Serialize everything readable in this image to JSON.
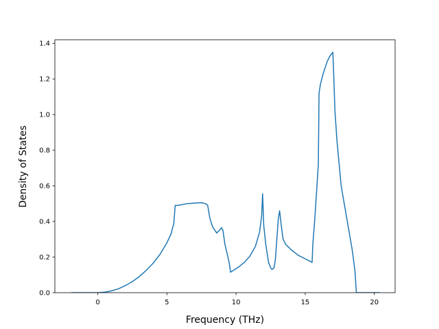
{
  "chart_data": {
    "type": "line",
    "title": "",
    "xlabel": "Frequency (THz)",
    "ylabel": "Density of States",
    "xlim": [
      -3.1,
      21.5
    ],
    "ylim": [
      0.0,
      1.42
    ],
    "grid": false,
    "xticks": [
      0,
      5,
      10,
      15,
      20
    ],
    "xtick_labels": [
      "0",
      "5",
      "10",
      "15",
      "20"
    ],
    "yticks": [
      0.0,
      0.2,
      0.4,
      0.6,
      0.8,
      1.0,
      1.2,
      1.4
    ],
    "ytick_labels": [
      "0.0",
      "0.2",
      "0.4",
      "0.6",
      "0.8",
      "1.0",
      "1.2",
      "1.4"
    ],
    "series": [
      {
        "color": "#1f77b4",
        "x": [
          -1.9,
          -1.0,
          0.0,
          0.5,
          1.0,
          1.5,
          2.0,
          2.5,
          3.0,
          3.5,
          4.0,
          4.5,
          5.0,
          5.3,
          5.5,
          5.6,
          5.8,
          6.5,
          7.0,
          7.5,
          7.8,
          7.95,
          8.1,
          8.3,
          8.6,
          8.8,
          8.95,
          9.05,
          9.2,
          9.35,
          9.5,
          9.6,
          9.8,
          10.2,
          10.6,
          11.0,
          11.4,
          11.7,
          11.85,
          11.92,
          12.0,
          12.15,
          12.35,
          12.5,
          12.6,
          12.75,
          12.85,
          12.95,
          13.05,
          13.15,
          13.25,
          13.4,
          13.6,
          14.0,
          14.5,
          15.0,
          15.5,
          15.55,
          15.7,
          15.85,
          15.95,
          16.0,
          16.1,
          16.3,
          16.6,
          16.8,
          17.0,
          17.05,
          17.15,
          17.3,
          17.6,
          18.0,
          18.4,
          18.6,
          18.7,
          19.0,
          19.5,
          20.0,
          20.4
        ],
        "y": [
          0.0,
          0.0,
          0.0,
          0.003,
          0.01,
          0.022,
          0.04,
          0.062,
          0.09,
          0.125,
          0.165,
          0.215,
          0.28,
          0.33,
          0.39,
          0.49,
          0.49,
          0.5,
          0.503,
          0.505,
          0.5,
          0.49,
          0.42,
          0.37,
          0.335,
          0.35,
          0.365,
          0.35,
          0.27,
          0.22,
          0.17,
          0.115,
          0.125,
          0.145,
          0.17,
          0.205,
          0.26,
          0.34,
          0.43,
          0.555,
          0.38,
          0.27,
          0.17,
          0.14,
          0.13,
          0.14,
          0.19,
          0.3,
          0.41,
          0.46,
          0.39,
          0.3,
          0.27,
          0.24,
          0.21,
          0.19,
          0.17,
          0.27,
          0.42,
          0.6,
          0.72,
          1.12,
          1.17,
          1.23,
          1.3,
          1.33,
          1.35,
          1.25,
          1.02,
          0.85,
          0.6,
          0.42,
          0.24,
          0.12,
          0.0,
          0.0,
          0.0,
          0.0,
          0.0
        ]
      }
    ]
  }
}
